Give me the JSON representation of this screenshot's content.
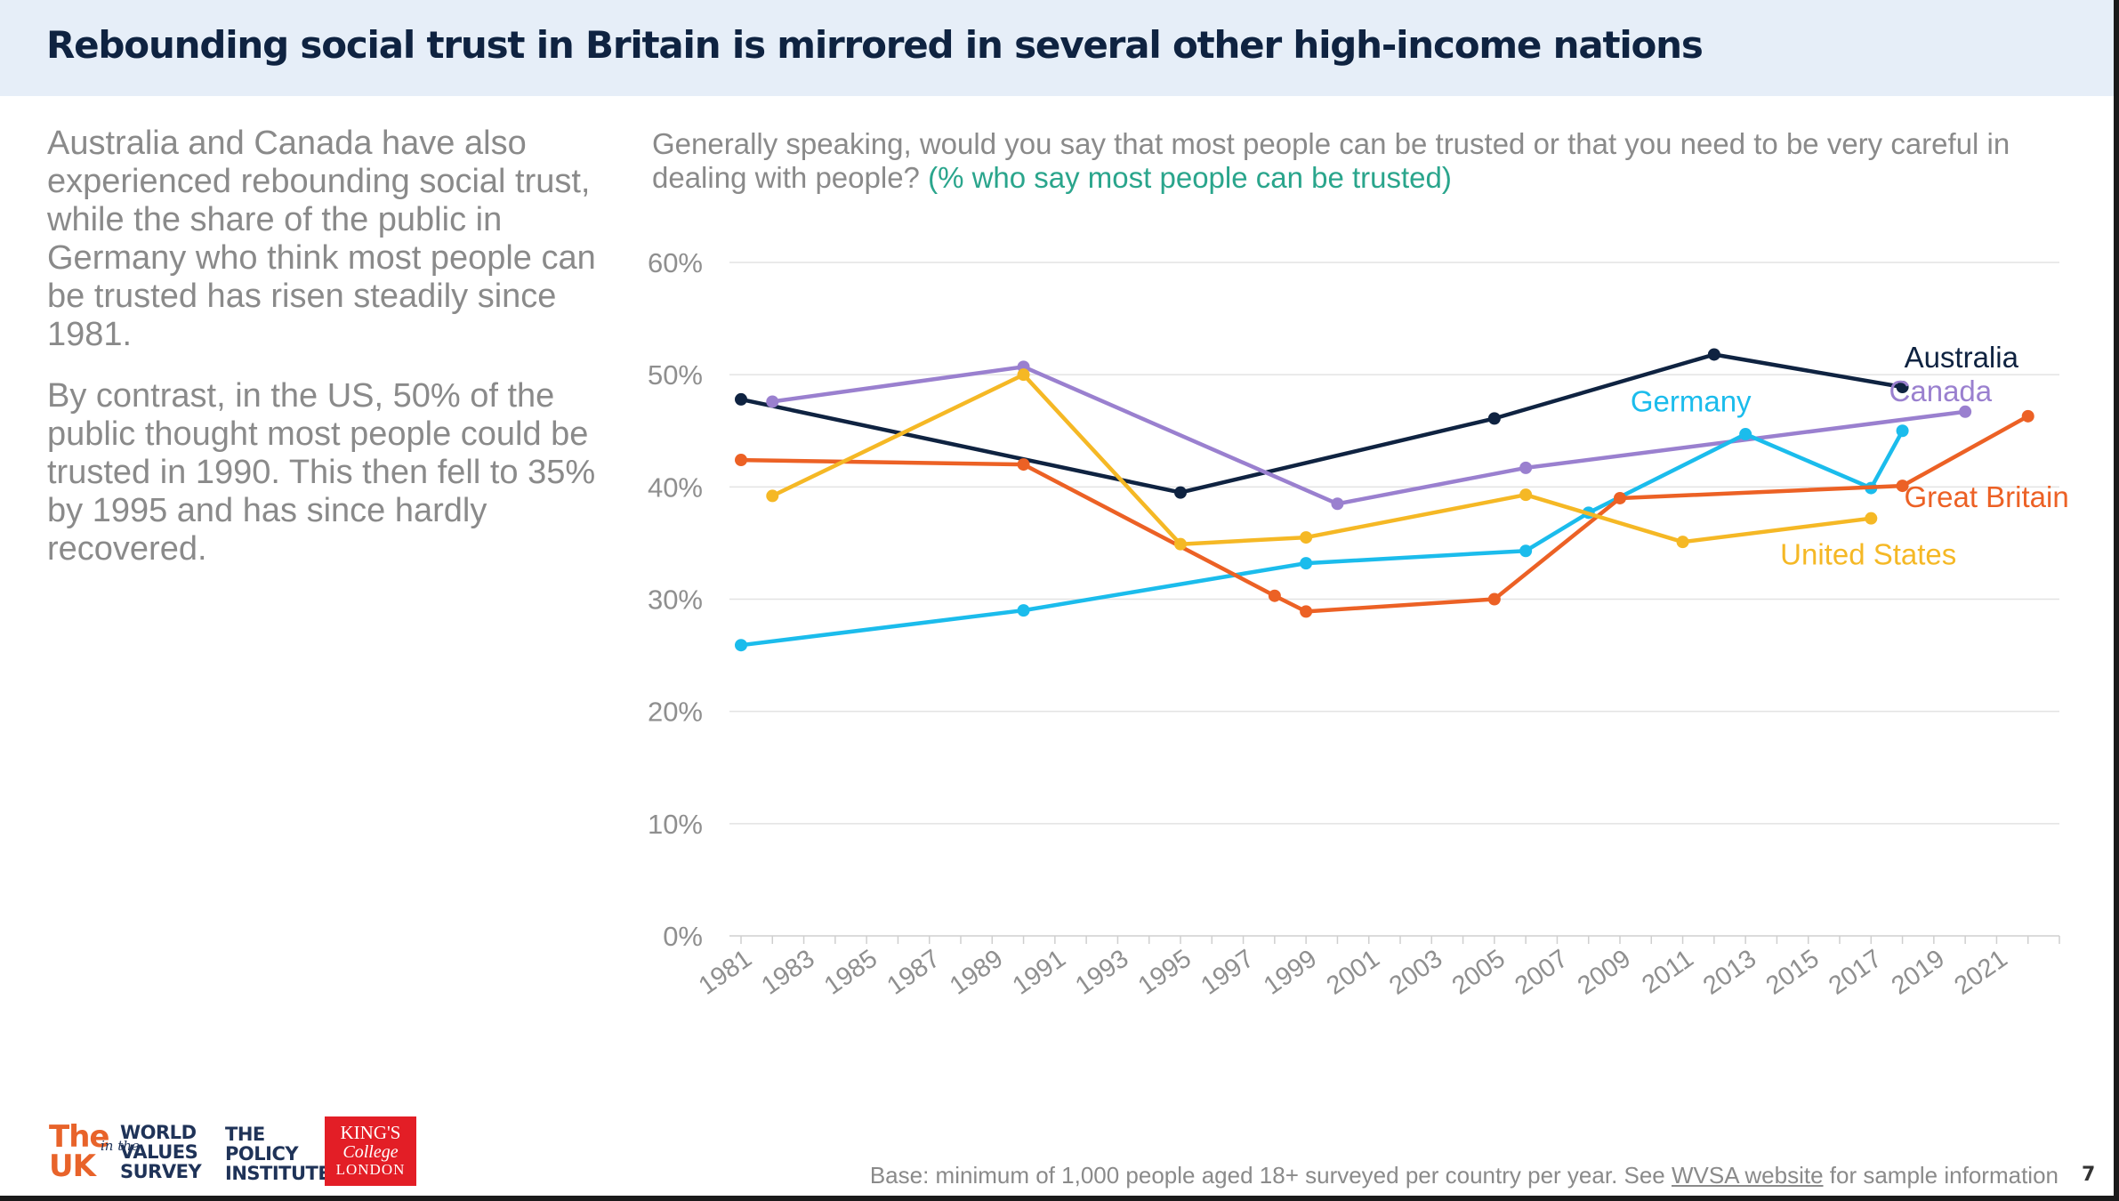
{
  "header": {
    "title": "Rebounding social trust in Britain is mirrored in several other high-income nations"
  },
  "left_text": {
    "p1": "Australia and Canada have also experienced rebounding social trust, while the share of the public in Germany who think most people can be trusted has risen steadily since 1981.",
    "p2": "By contrast, in the US, 50% of the public thought most people could be trusted in 1990. This then fell to 35% by 1995 and has since hardly recovered."
  },
  "question": {
    "text": "Generally speaking, would you say that most people can be trusted or that you need to be very careful in dealing with people?",
    "unit": "(% who say most people can be trusted)"
  },
  "chart_data": {
    "type": "line",
    "title": "",
    "xlabel": "",
    "ylabel": "",
    "xlim": [
      1981,
      2023
    ],
    "ylim": [
      0,
      60
    ],
    "x_ticks": [
      1981,
      1983,
      1985,
      1987,
      1989,
      1991,
      1993,
      1995,
      1997,
      1999,
      2001,
      2003,
      2005,
      2007,
      2009,
      2011,
      2013,
      2015,
      2017,
      2019,
      2021
    ],
    "y_ticks": [
      0,
      10,
      20,
      30,
      40,
      50,
      60
    ],
    "y_tick_labels": [
      "0%",
      "10%",
      "20%",
      "30%",
      "40%",
      "50%",
      "60%"
    ],
    "grid": true,
    "legend": "direct labels at line ends",
    "series": [
      {
        "name": "Australia",
        "color": "#0f2341",
        "points": [
          [
            1981,
            47.8
          ],
          [
            1995,
            39.5
          ],
          [
            2005,
            46.1
          ],
          [
            2012,
            51.8
          ],
          [
            2018,
            48.9
          ]
        ]
      },
      {
        "name": "Canada",
        "color": "#9a80cf",
        "points": [
          [
            1982,
            47.6
          ],
          [
            1990,
            50.7
          ],
          [
            2000,
            38.5
          ],
          [
            2006,
            41.7
          ],
          [
            2020,
            46.7
          ]
        ]
      },
      {
        "name": "Germany",
        "color": "#1bbcec",
        "points": [
          [
            1981,
            25.9
          ],
          [
            1990,
            29.0
          ],
          [
            1999,
            33.2
          ],
          [
            2006,
            34.3
          ],
          [
            2008,
            37.7
          ],
          [
            2013,
            44.7
          ],
          [
            2017,
            39.9
          ],
          [
            2018,
            45.0
          ]
        ]
      },
      {
        "name": "Great Britain",
        "color": "#ec6125",
        "points": [
          [
            1981,
            42.4
          ],
          [
            1990,
            42.0
          ],
          [
            1998,
            30.3
          ],
          [
            1999,
            28.9
          ],
          [
            2005,
            30.0
          ],
          [
            2009,
            39.0
          ],
          [
            2018,
            40.1
          ],
          [
            2022,
            46.3
          ]
        ]
      },
      {
        "name": "United States",
        "color": "#f5b825",
        "points": [
          [
            1982,
            39.2
          ],
          [
            1990,
            50.0
          ],
          [
            1995,
            34.9
          ],
          [
            1999,
            35.5
          ],
          [
            2006,
            39.3
          ],
          [
            2011,
            35.1
          ],
          [
            2017,
            37.2
          ]
        ]
      }
    ]
  },
  "footer": {
    "base_text": "Base: minimum of 1,000 people aged 18+ surveyed per country per year. See",
    "link_text": "WVSA website",
    "base_text_end": "for sample information",
    "page_number": "7"
  },
  "logos": {
    "wvs_the": "The",
    "wvs_uk": "UK",
    "wvs_in_the": "in the",
    "wvs_world": "WORLD",
    "wvs_values": "VALUES",
    "wvs_survey": "SURVEY",
    "policy_line1": "THE",
    "policy_line2": "POLICY",
    "policy_line3": "INSTITUTE",
    "kings_line1": "KING'S",
    "kings_line2": "College",
    "kings_line3": "LONDON"
  }
}
